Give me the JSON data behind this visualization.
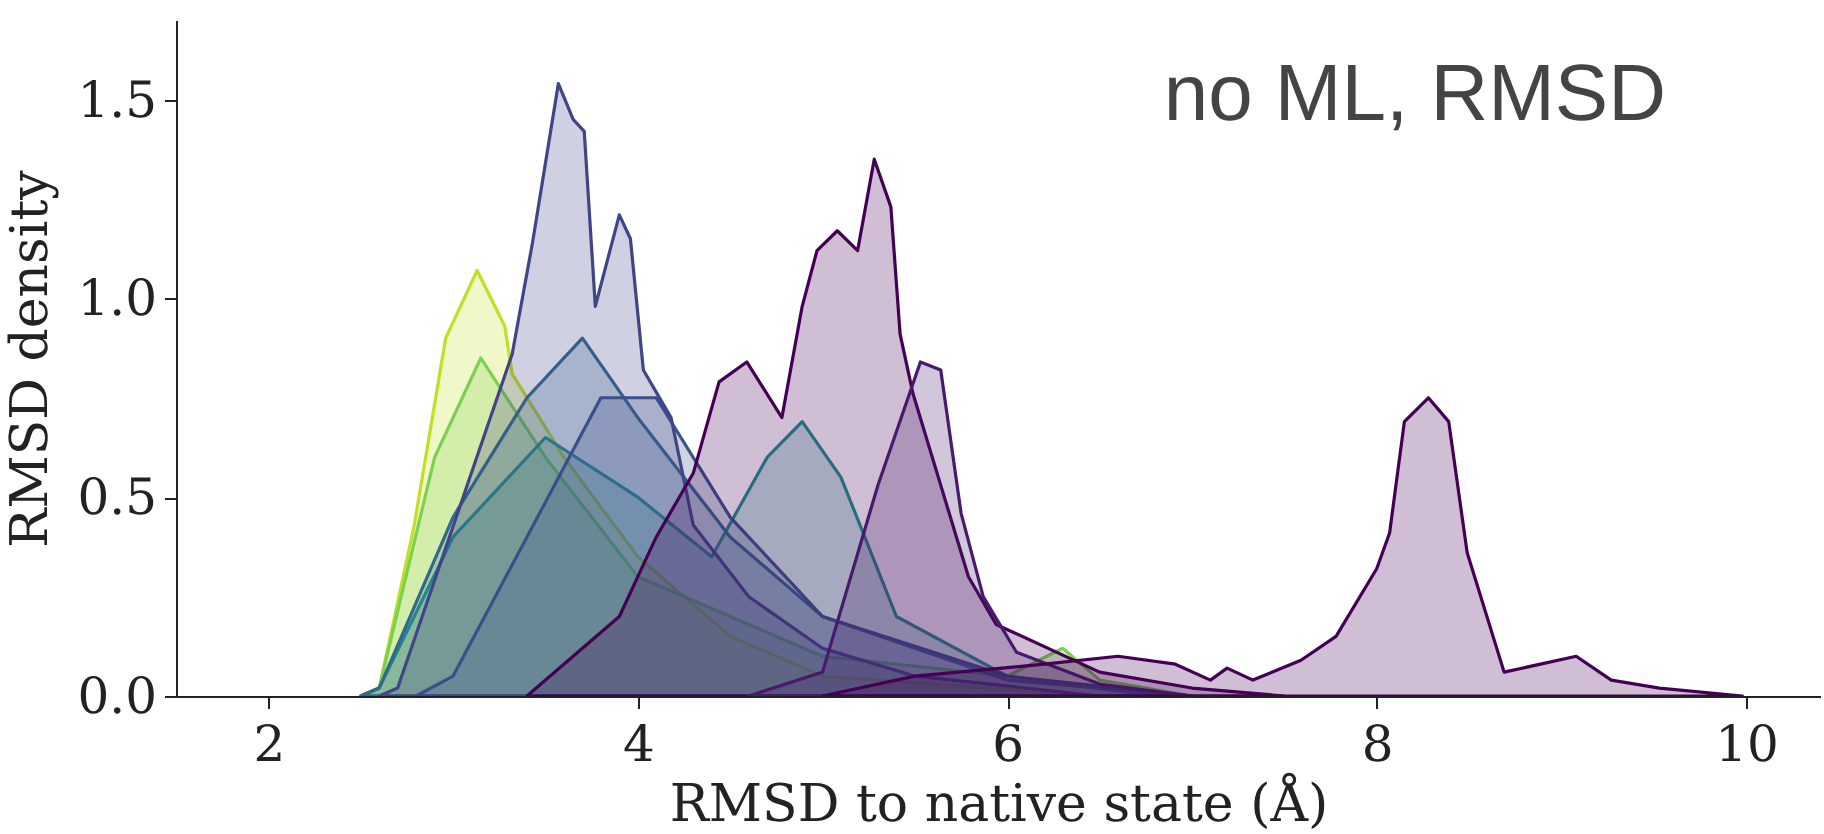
{
  "chart_data": {
    "type": "area",
    "xlabel": "RMSD to native state (Å)",
    "ylabel": "RMSD density",
    "annotations": [
      "no ML, RMSD"
    ],
    "xlim": [
      1.5,
      10.4
    ],
    "ylim": [
      0,
      1.7
    ],
    "xticks": [
      2,
      4,
      6,
      8,
      10
    ],
    "yticks": [
      {
        "value": 0,
        "label": "0.0"
      },
      {
        "value": 0.5,
        "label": "0.5"
      },
      {
        "value": 1,
        "label": "1.0"
      },
      {
        "value": 1.5,
        "label": "1.5"
      }
    ],
    "grid": false,
    "line_style": "solid",
    "marker": "none",
    "series": [
      {
        "color": "#c2df23",
        "x": [
          2.5,
          2.6,
          2.79,
          2.96,
          3.13,
          3.28,
          3.32,
          3.6,
          4.0,
          4.5,
          5.0,
          6.5
        ],
        "values": [
          0,
          0.02,
          0.43,
          0.9,
          1.07,
          0.93,
          0.81,
          0.6,
          0.35,
          0.15,
          0.05,
          0
        ]
      },
      {
        "color": "#7ad151",
        "x": [
          2.5,
          2.6,
          2.9,
          3.15,
          3.5,
          4.0,
          5.0,
          6.0,
          6.3,
          6.5,
          7.0
        ],
        "values": [
          0,
          0.02,
          0.6,
          0.85,
          0.6,
          0.3,
          0.1,
          0.05,
          0.12,
          0.04,
          0
        ]
      },
      {
        "color": "#21918c",
        "x": [
          2.5,
          2.6,
          3.0,
          3.5,
          4.0,
          4.4,
          4.7,
          4.89,
          5.1,
          5.4,
          6.0,
          6.8
        ],
        "values": [
          0,
          0.02,
          0.4,
          0.65,
          0.5,
          0.35,
          0.6,
          0.69,
          0.55,
          0.2,
          0.05,
          0
        ]
      },
      {
        "color": "#31688e",
        "x": [
          2.5,
          2.6,
          3.0,
          3.4,
          3.7,
          4.0,
          4.5,
          5.0,
          6.0,
          7.0
        ],
        "values": [
          0,
          0.02,
          0.45,
          0.75,
          0.9,
          0.7,
          0.4,
          0.2,
          0.04,
          0
        ]
      },
      {
        "color": "#3b528b",
        "x": [
          2.8,
          3.0,
          3.4,
          3.8,
          4.1,
          4.5,
          5.0,
          6.0,
          7.0
        ],
        "values": [
          0,
          0.05,
          0.4,
          0.75,
          0.75,
          0.45,
          0.2,
          0.05,
          0
        ]
      },
      {
        "color": "#414487",
        "x": [
          2.6,
          2.7,
          3.32,
          3.43,
          3.57,
          3.65,
          3.71,
          3.77,
          3.9,
          3.96,
          4.03,
          4.18,
          4.3,
          4.6,
          5.0,
          5.5,
          6.5
        ],
        "values": [
          0,
          0.02,
          0.86,
          1.14,
          1.54,
          1.45,
          1.42,
          0.98,
          1.21,
          1.15,
          0.82,
          0.7,
          0.43,
          0.25,
          0.12,
          0.05,
          0
        ]
      },
      {
        "color": "#440154",
        "x": [
          3.4,
          3.9,
          4.1,
          4.3,
          4.44,
          4.59,
          4.78,
          4.89,
          4.97,
          5.08,
          5.19,
          5.28,
          5.37,
          5.42,
          5.49,
          5.79,
          5.94,
          6.5,
          7.0,
          7.5
        ],
        "values": [
          0,
          0.2,
          0.4,
          0.56,
          0.79,
          0.84,
          0.7,
          0.98,
          1.12,
          1.17,
          1.12,
          1.35,
          1.23,
          0.91,
          0.76,
          0.3,
          0.18,
          0.06,
          0.02,
          0
        ]
      },
      {
        "color": "#481a6c",
        "x": [
          4.6,
          5.0,
          5.3,
          5.53,
          5.64,
          5.75,
          5.87,
          6.05,
          6.5,
          7.0
        ],
        "values": [
          0,
          0.06,
          0.53,
          0.84,
          0.82,
          0.46,
          0.25,
          0.11,
          0.03,
          0
        ]
      },
      {
        "color": "#440154",
        "x": [
          5.0,
          5.5,
          6.2,
          6.6,
          6.91,
          7.1,
          7.19,
          7.33,
          7.59,
          7.78,
          8.0,
          8.07,
          8.15,
          8.28,
          8.39,
          8.49,
          8.69,
          9.08,
          9.27,
          9.53,
          9.98
        ],
        "values": [
          0,
          0.05,
          0.08,
          0.1,
          0.08,
          0.04,
          0.07,
          0.04,
          0.09,
          0.15,
          0.32,
          0.41,
          0.69,
          0.75,
          0.69,
          0.36,
          0.06,
          0.1,
          0.04,
          0.02,
          0
        ]
      }
    ]
  }
}
